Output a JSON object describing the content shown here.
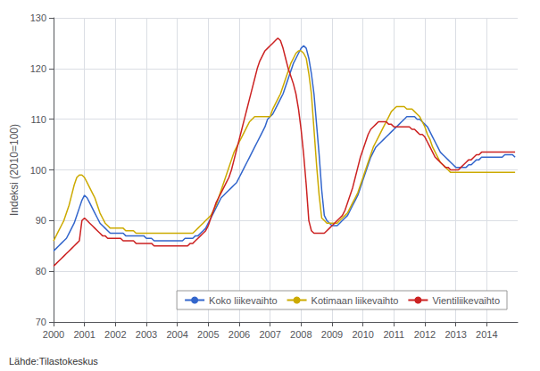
{
  "chart_data": {
    "type": "line",
    "ylabel": "Indeksi (2010=100)",
    "annotations": [
      "Lähde:Tilastokeskus"
    ],
    "xlim": [
      2000,
      2015
    ],
    "xticks": [
      2000,
      2001,
      2002,
      2003,
      2004,
      2005,
      2006,
      2007,
      2008,
      2009,
      2010,
      2011,
      2012,
      2013,
      2014
    ],
    "ylim": [
      70,
      130
    ],
    "yticks": [
      70,
      80,
      90,
      100,
      110,
      120,
      130
    ],
    "grid": true,
    "legend": "lower right",
    "x": [
      2000.0,
      2000.0833333333333,
      2000.1666666666667,
      2000.25,
      2000.3333333333333,
      2000.4166666666667,
      2000.5,
      2000.5833333333333,
      2000.6666666666667,
      2000.75,
      2000.8333333333333,
      2000.9166666666667,
      2001.0,
      2001.0833333333333,
      2001.1666666666667,
      2001.25,
      2001.3333333333333,
      2001.4166666666667,
      2001.5,
      2001.5833333333333,
      2001.6666666666667,
      2001.75,
      2001.8333333333333,
      2001.9166666666667,
      2002.0,
      2002.0833333333333,
      2002.1666666666667,
      2002.25,
      2002.3333333333333,
      2002.4166666666667,
      2002.5,
      2002.5833333333333,
      2002.6666666666667,
      2002.75,
      2002.8333333333333,
      2002.9166666666667,
      2003.0,
      2003.0833333333333,
      2003.1666666666667,
      2003.25,
      2003.3333333333333,
      2003.4166666666667,
      2003.5,
      2003.5833333333333,
      2003.6666666666667,
      2003.75,
      2003.8333333333333,
      2003.9166666666667,
      2004.0,
      2004.0833333333333,
      2004.1666666666667,
      2004.25,
      2004.3333333333333,
      2004.4166666666667,
      2004.5,
      2004.5833333333333,
      2004.6666666666667,
      2004.75,
      2004.8333333333333,
      2004.9166666666667,
      2005.0,
      2005.0833333333333,
      2005.1666666666667,
      2005.25,
      2005.3333333333333,
      2005.4166666666667,
      2005.5,
      2005.5833333333333,
      2005.6666666666667,
      2005.75,
      2005.8333333333333,
      2005.9166666666667,
      2006.0,
      2006.0833333333333,
      2006.1666666666667,
      2006.25,
      2006.3333333333333,
      2006.4166666666667,
      2006.5,
      2006.5833333333333,
      2006.6666666666667,
      2006.75,
      2006.8333333333333,
      2006.9166666666667,
      2007.0,
      2007.0833333333333,
      2007.1666666666667,
      2007.25,
      2007.3333333333333,
      2007.4166666666667,
      2007.5,
      2007.5833333333333,
      2007.6666666666667,
      2007.75,
      2007.8333333333333,
      2007.9166666666667,
      2008.0,
      2008.0833333333333,
      2008.1666666666667,
      2008.25,
      2008.3333333333333,
      2008.4166666666667,
      2008.5,
      2008.5833333333333,
      2008.6666666666667,
      2008.75,
      2008.8333333333333,
      2008.9166666666667,
      2009.0,
      2009.0833333333333,
      2009.1666666666667,
      2009.25,
      2009.3333333333333,
      2009.4166666666667,
      2009.5,
      2009.5833333333333,
      2009.6666666666667,
      2009.75,
      2009.8333333333333,
      2009.9166666666667,
      2010.0,
      2010.0833333333333,
      2010.1666666666667,
      2010.25,
      2010.3333333333333,
      2010.4166666666667,
      2010.5,
      2010.5833333333333,
      2010.6666666666667,
      2010.75,
      2010.8333333333333,
      2010.9166666666667,
      2011.0,
      2011.0833333333333,
      2011.1666666666667,
      2011.25,
      2011.3333333333333,
      2011.4166666666667,
      2011.5,
      2011.5833333333333,
      2011.6666666666667,
      2011.75,
      2011.8333333333333,
      2011.9166666666667,
      2012.0,
      2012.0833333333333,
      2012.1666666666667,
      2012.25,
      2012.3333333333333,
      2012.4166666666667,
      2012.5,
      2012.5833333333333,
      2012.6666666666667,
      2012.75,
      2012.8333333333333,
      2012.9166666666667,
      2013.0,
      2013.0833333333333,
      2013.1666666666667,
      2013.25,
      2013.3333333333333,
      2013.4166666666667,
      2013.5,
      2013.5833333333333,
      2013.6666666666667,
      2013.75,
      2013.8333333333333,
      2013.9166666666667,
      2014.0,
      2014.0833333333333,
      2014.1666666666667,
      2014.25,
      2014.3333333333333,
      2014.4166666666667,
      2014.5,
      2014.5833333333333,
      2014.6666666666667,
      2014.75,
      2014.8333333333333,
      2014.9166666666667
    ],
    "series": [
      {
        "name": "Koko liikevaihto",
        "color": "#3366cc",
        "values": [
          84.0,
          84.5,
          85.0,
          85.5,
          86.0,
          86.5,
          87.5,
          88.5,
          89.5,
          91.0,
          92.5,
          94.0,
          95.0,
          94.5,
          93.5,
          92.5,
          91.5,
          90.5,
          89.5,
          89.0,
          88.5,
          88.0,
          87.5,
          87.5,
          87.5,
          87.5,
          87.5,
          87.5,
          87.0,
          87.0,
          87.0,
          87.0,
          87.0,
          87.0,
          87.0,
          87.0,
          86.5,
          86.5,
          86.5,
          86.0,
          86.0,
          86.0,
          86.0,
          86.0,
          86.0,
          86.0,
          86.0,
          86.0,
          86.0,
          86.0,
          86.0,
          86.5,
          86.5,
          86.5,
          86.5,
          87.0,
          87.0,
          87.5,
          88.0,
          88.5,
          89.5,
          90.5,
          91.5,
          92.5,
          93.5,
          94.5,
          95.0,
          95.5,
          96.0,
          96.5,
          97.0,
          97.5,
          98.5,
          99.5,
          100.5,
          101.5,
          102.5,
          103.5,
          104.5,
          105.5,
          106.5,
          107.5,
          108.5,
          110.0,
          110.5,
          111.0,
          112.0,
          113.0,
          114.0,
          115.0,
          116.5,
          118.0,
          119.5,
          121.0,
          122.0,
          123.0,
          124.0,
          124.5,
          124.0,
          122.0,
          119.0,
          115.0,
          109.0,
          103.0,
          96.0,
          91.0,
          90.0,
          89.5,
          89.0,
          89.0,
          89.0,
          89.5,
          90.0,
          90.5,
          91.0,
          92.0,
          93.0,
          94.0,
          95.0,
          96.5,
          98.0,
          99.5,
          101.0,
          102.5,
          103.5,
          104.5,
          105.0,
          105.5,
          106.0,
          106.5,
          107.0,
          107.5,
          108.0,
          108.5,
          109.0,
          109.5,
          110.0,
          110.5,
          110.5,
          110.5,
          110.5,
          110.0,
          110.0,
          109.5,
          109.0,
          108.5,
          107.5,
          106.5,
          105.5,
          104.5,
          103.5,
          103.0,
          102.5,
          102.0,
          101.5,
          101.0,
          100.5,
          100.5,
          100.5,
          100.5,
          100.5,
          101.0,
          101.0,
          101.5,
          102.0,
          102.0,
          102.5,
          102.5,
          102.5,
          102.5,
          102.5,
          102.5,
          102.5,
          102.5,
          102.5,
          103.0,
          103.0,
          103.0,
          103.0,
          102.5
        ]
      },
      {
        "name": "Kotimaan liikevaihto",
        "color": "#ccaa00",
        "values": [
          86.0,
          87.0,
          88.0,
          89.0,
          90.0,
          91.5,
          93.0,
          95.0,
          97.0,
          98.5,
          99.0,
          99.0,
          98.5,
          97.5,
          96.5,
          95.5,
          94.5,
          93.0,
          91.5,
          90.5,
          89.5,
          89.0,
          88.5,
          88.5,
          88.5,
          88.5,
          88.5,
          88.5,
          88.0,
          88.0,
          88.0,
          88.0,
          87.5,
          87.5,
          87.5,
          87.5,
          87.5,
          87.5,
          87.5,
          87.5,
          87.5,
          87.5,
          87.5,
          87.5,
          87.5,
          87.5,
          87.5,
          87.5,
          87.5,
          87.5,
          87.5,
          87.5,
          87.5,
          87.5,
          87.5,
          88.0,
          88.5,
          89.0,
          89.5,
          90.0,
          90.5,
          91.0,
          92.0,
          93.0,
          94.5,
          96.0,
          97.5,
          99.0,
          100.5,
          102.0,
          103.5,
          104.5,
          105.5,
          106.5,
          107.5,
          108.5,
          109.5,
          110.0,
          110.5,
          110.5,
          110.5,
          110.5,
          110.5,
          110.5,
          110.5,
          112.0,
          113.0,
          114.0,
          115.0,
          116.5,
          118.0,
          119.5,
          121.0,
          122.0,
          123.0,
          123.5,
          123.5,
          123.0,
          122.0,
          119.0,
          115.0,
          108.0,
          101.0,
          95.0,
          90.5,
          90.0,
          89.5,
          89.5,
          89.5,
          89.5,
          89.5,
          90.0,
          90.5,
          91.0,
          91.5,
          92.5,
          93.5,
          94.5,
          95.5,
          97.0,
          98.5,
          100.0,
          101.5,
          103.0,
          104.5,
          105.5,
          106.5,
          107.5,
          108.5,
          109.5,
          110.5,
          111.5,
          112.0,
          112.5,
          112.5,
          112.5,
          112.5,
          112.0,
          112.0,
          112.0,
          111.5,
          111.0,
          110.5,
          109.5,
          108.5,
          107.0,
          106.0,
          104.5,
          103.5,
          102.5,
          101.5,
          101.0,
          100.5,
          100.0,
          99.5,
          99.5,
          99.5,
          99.5,
          99.5,
          99.5,
          99.5,
          99.5,
          99.5,
          99.5,
          99.5,
          99.5,
          99.5,
          99.5,
          99.5,
          99.5,
          99.5,
          99.5,
          99.5,
          99.5,
          99.5,
          99.5,
          99.5,
          99.5,
          99.5,
          99.5
        ]
      },
      {
        "name": "Vientiliikevaihto",
        "color": "#cc2222",
        "values": [
          81.0,
          81.5,
          82.0,
          82.5,
          83.0,
          83.5,
          84.0,
          84.5,
          85.0,
          85.5,
          86.0,
          90.0,
          90.5,
          90.0,
          89.5,
          89.0,
          88.5,
          88.0,
          87.5,
          87.0,
          87.0,
          86.5,
          86.5,
          86.5,
          86.5,
          86.5,
          86.5,
          86.0,
          86.0,
          86.0,
          86.0,
          86.0,
          85.5,
          85.5,
          85.5,
          85.5,
          85.5,
          85.5,
          85.5,
          85.0,
          85.0,
          85.0,
          85.0,
          85.0,
          85.0,
          85.0,
          85.0,
          85.0,
          85.0,
          85.0,
          85.0,
          85.0,
          85.0,
          85.5,
          85.5,
          86.0,
          86.5,
          87.0,
          87.5,
          88.0,
          89.0,
          90.5,
          92.0,
          93.5,
          94.5,
          95.5,
          96.5,
          97.5,
          98.5,
          100.0,
          102.0,
          104.0,
          106.0,
          108.0,
          110.0,
          112.0,
          114.0,
          116.0,
          118.0,
          120.0,
          121.5,
          122.5,
          123.5,
          124.0,
          124.5,
          125.0,
          125.5,
          126.0,
          125.5,
          124.0,
          122.0,
          120.0,
          118.5,
          117.0,
          115.0,
          112.0,
          108.0,
          103.0,
          97.0,
          90.0,
          88.0,
          87.5,
          87.5,
          87.5,
          87.5,
          87.5,
          88.0,
          88.5,
          89.0,
          89.5,
          90.0,
          90.5,
          91.0,
          92.0,
          93.5,
          95.0,
          96.5,
          98.5,
          100.5,
          102.5,
          104.0,
          105.5,
          107.0,
          108.0,
          108.5,
          109.0,
          109.5,
          109.5,
          109.5,
          109.5,
          109.0,
          109.0,
          108.5,
          108.5,
          108.5,
          108.5,
          108.5,
          108.5,
          108.5,
          108.0,
          108.0,
          107.5,
          107.0,
          107.0,
          106.5,
          105.5,
          104.5,
          103.5,
          102.5,
          102.0,
          101.5,
          101.0,
          100.5,
          100.5,
          100.0,
          100.0,
          100.0,
          100.0,
          100.5,
          101.0,
          101.5,
          102.0,
          102.0,
          102.5,
          103.0,
          103.0,
          103.5,
          103.5,
          103.5,
          103.5,
          103.5,
          103.5,
          103.5,
          103.5,
          103.5,
          103.5,
          103.5,
          103.5,
          103.5,
          103.5
        ]
      }
    ]
  }
}
